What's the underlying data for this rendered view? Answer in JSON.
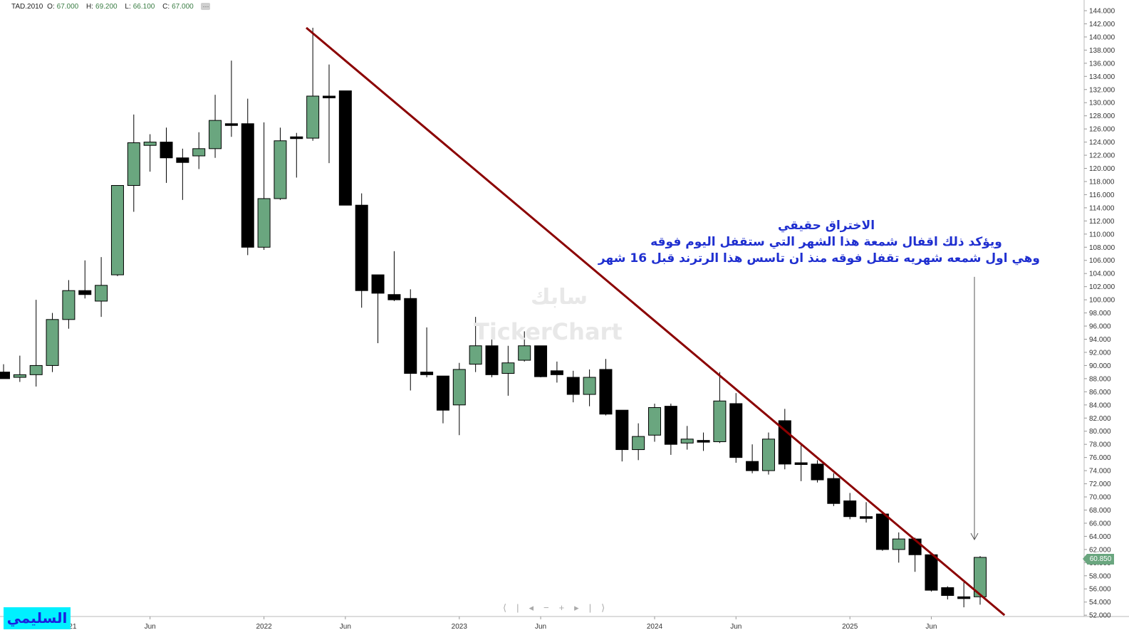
{
  "header": {
    "symbol": "TAD.2010",
    "open_label": "O:",
    "open": "67.000",
    "high_label": "H:",
    "high": "69.200",
    "low_label": "L:",
    "low": "66.100",
    "close_label": "C:",
    "close": "67.000",
    "more": "···"
  },
  "annotation": {
    "line1": "الاختراق حقيقي",
    "line2": "ويؤكد ذلك اقفال شمعة هذا الشهر التي ستقفل اليوم فوقه",
    "line3": "وهي اول شمعه شهريه تقفل فوقه منذ ان تاسس هذا الرترند قبل 16 شهر"
  },
  "author_label": "السليمي",
  "watermark": {
    "arabic": "سابك",
    "brand": "TickerChart"
  },
  "nav_controls": [
    "⟨|",
    "◂",
    "−",
    "+",
    "▸",
    "|⟩"
  ],
  "colors": {
    "up": "#6aa67f",
    "down": "#000000",
    "trendline": "#8b0000",
    "annotation": "#1f2fd0",
    "author_bg": "#00f0ff"
  },
  "chart_data": {
    "type": "candlestick",
    "title": "TAD.2010",
    "interval": "monthly",
    "y_axis": {
      "position": "right",
      "ylim": [
        52,
        145
      ],
      "tick_step": 2,
      "tick_decimals": 3
    },
    "x_tick_labels": [
      {
        "label": "2021",
        "index": 4
      },
      {
        "label": "Jun",
        "index": 9
      },
      {
        "label": "2022",
        "index": 16
      },
      {
        "label": "Jun",
        "index": 21
      },
      {
        "label": "2023",
        "index": 28
      },
      {
        "label": "Jun",
        "index": 33
      },
      {
        "label": "2024",
        "index": 40
      },
      {
        "label": "Jun",
        "index": 45
      },
      {
        "label": "2025",
        "index": 52
      },
      {
        "label": "Jun",
        "index": 57
      }
    ],
    "last_price": "60.850",
    "trendline": {
      "start_index": 18.6,
      "start_value": 141.4,
      "end_index": 61.5,
      "end_value": 52.0
    },
    "arrow": {
      "index": 60,
      "from_value": 103.5,
      "to_value": 63.5
    },
    "candles": [
      {
        "o": 89.0,
        "h": 90.2,
        "l": 88.0,
        "c": 88.0
      },
      {
        "o": 88.2,
        "h": 91.5,
        "l": 87.5,
        "c": 88.6
      },
      {
        "o": 88.6,
        "h": 100.0,
        "l": 86.8,
        "c": 90.0
      },
      {
        "o": 90.0,
        "h": 98.0,
        "l": 89.0,
        "c": 97.0
      },
      {
        "o": 97.0,
        "h": 103.0,
        "l": 95.6,
        "c": 101.4
      },
      {
        "o": 101.4,
        "h": 106.0,
        "l": 100.2,
        "c": 100.8
      },
      {
        "o": 99.8,
        "h": 106.5,
        "l": 97.4,
        "c": 102.2
      },
      {
        "o": 103.8,
        "h": 117.4,
        "l": 103.6,
        "c": 117.4
      },
      {
        "o": 117.4,
        "h": 128.2,
        "l": 113.4,
        "c": 123.9
      },
      {
        "o": 123.5,
        "h": 125.2,
        "l": 119.5,
        "c": 124.0
      },
      {
        "o": 124.0,
        "h": 126.2,
        "l": 117.8,
        "c": 121.6
      },
      {
        "o": 121.6,
        "h": 123.0,
        "l": 115.2,
        "c": 120.9
      },
      {
        "o": 121.9,
        "h": 125.5,
        "l": 119.9,
        "c": 123.0
      },
      {
        "o": 123.0,
        "h": 131.2,
        "l": 121.6,
        "c": 127.3
      },
      {
        "o": 126.8,
        "h": 136.4,
        "l": 124.8,
        "c": 126.8
      },
      {
        "o": 126.8,
        "h": 130.6,
        "l": 106.8,
        "c": 108.0
      },
      {
        "o": 108.0,
        "h": 127.0,
        "l": 107.6,
        "c": 115.4
      },
      {
        "o": 115.4,
        "h": 126.2,
        "l": 115.2,
        "c": 124.2
      },
      {
        "o": 124.8,
        "h": 125.4,
        "l": 118.6,
        "c": 124.8
      },
      {
        "o": 124.6,
        "h": 141.4,
        "l": 124.2,
        "c": 131.0
      },
      {
        "o": 131.0,
        "h": 135.8,
        "l": 120.8,
        "c": 131.0
      },
      {
        "o": 131.8,
        "h": 131.8,
        "l": 114.4,
        "c": 114.4
      },
      {
        "o": 114.4,
        "h": 116.2,
        "l": 98.8,
        "c": 101.4
      },
      {
        "o": 103.8,
        "h": 103.8,
        "l": 93.4,
        "c": 101.0
      },
      {
        "o": 100.8,
        "h": 107.4,
        "l": 99.8,
        "c": 100.0
      },
      {
        "o": 100.2,
        "h": 101.6,
        "l": 86.2,
        "c": 88.8
      },
      {
        "o": 89.0,
        "h": 95.8,
        "l": 88.2,
        "c": 88.6
      },
      {
        "o": 88.4,
        "h": 88.4,
        "l": 81.2,
        "c": 83.2
      },
      {
        "o": 84.0,
        "h": 90.4,
        "l": 79.4,
        "c": 89.4
      },
      {
        "o": 90.2,
        "h": 97.4,
        "l": 89.0,
        "c": 93.0
      },
      {
        "o": 93.0,
        "h": 95.2,
        "l": 88.2,
        "c": 88.6
      },
      {
        "o": 88.8,
        "h": 93.0,
        "l": 85.4,
        "c": 90.4
      },
      {
        "o": 90.8,
        "h": 95.2,
        "l": 90.6,
        "c": 93.0
      },
      {
        "o": 93.0,
        "h": 93.0,
        "l": 88.2,
        "c": 88.3
      },
      {
        "o": 89.2,
        "h": 90.6,
        "l": 87.4,
        "c": 88.6
      },
      {
        "o": 88.2,
        "h": 89.2,
        "l": 84.4,
        "c": 85.6
      },
      {
        "o": 85.6,
        "h": 89.4,
        "l": 83.8,
        "c": 88.2
      },
      {
        "o": 89.4,
        "h": 91.0,
        "l": 82.4,
        "c": 82.6
      },
      {
        "o": 83.2,
        "h": 83.2,
        "l": 75.4,
        "c": 77.2
      },
      {
        "o": 77.2,
        "h": 81.2,
        "l": 75.6,
        "c": 79.2
      },
      {
        "o": 79.4,
        "h": 84.2,
        "l": 78.4,
        "c": 83.6
      },
      {
        "o": 83.8,
        "h": 84.2,
        "l": 76.4,
        "c": 78.0
      },
      {
        "o": 78.2,
        "h": 80.8,
        "l": 77.2,
        "c": 78.8
      },
      {
        "o": 78.6,
        "h": 79.8,
        "l": 77.0,
        "c": 78.4
      },
      {
        "o": 78.4,
        "h": 89.0,
        "l": 78.2,
        "c": 84.6
      },
      {
        "o": 84.2,
        "h": 85.8,
        "l": 75.2,
        "c": 76.0
      },
      {
        "o": 75.4,
        "h": 78.0,
        "l": 73.6,
        "c": 74.0
      },
      {
        "o": 74.0,
        "h": 79.8,
        "l": 73.4,
        "c": 78.8
      },
      {
        "o": 81.6,
        "h": 83.4,
        "l": 74.2,
        "c": 75.0
      },
      {
        "o": 75.2,
        "h": 78.0,
        "l": 72.4,
        "c": 75.0
      },
      {
        "o": 75.0,
        "h": 75.6,
        "l": 72.2,
        "c": 72.6
      },
      {
        "o": 72.8,
        "h": 73.6,
        "l": 68.6,
        "c": 69.0
      },
      {
        "o": 69.4,
        "h": 70.6,
        "l": 66.6,
        "c": 67.0
      },
      {
        "o": 67.0,
        "h": 69.2,
        "l": 66.1,
        "c": 67.0
      },
      {
        "o": 67.4,
        "h": 67.4,
        "l": 61.8,
        "c": 62.0
      },
      {
        "o": 62.0,
        "h": 64.6,
        "l": 60.0,
        "c": 63.6
      },
      {
        "o": 63.6,
        "h": 63.8,
        "l": 58.6,
        "c": 61.2
      },
      {
        "o": 61.2,
        "h": 61.2,
        "l": 55.6,
        "c": 55.8
      },
      {
        "o": 56.2,
        "h": 56.4,
        "l": 54.4,
        "c": 55.0
      },
      {
        "o": 54.8,
        "h": 57.0,
        "l": 53.2,
        "c": 54.8
      },
      {
        "o": 54.8,
        "h": 61.0,
        "l": 53.6,
        "c": 60.8
      }
    ]
  }
}
